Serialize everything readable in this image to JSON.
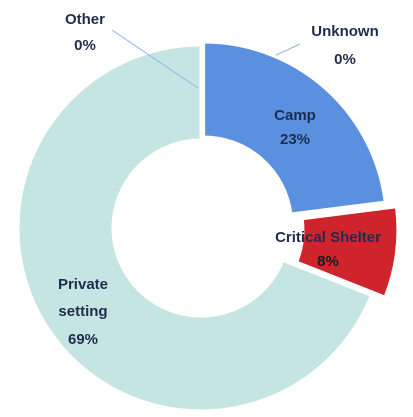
{
  "chart_data": {
    "type": "donut",
    "categories": [
      "Unknown",
      "Camp",
      "Critical Shelter",
      "Private setting",
      "Other"
    ],
    "values": [
      0,
      23,
      8,
      69,
      0
    ],
    "value_labels": [
      "0%",
      "23%",
      "8%",
      "69%",
      "0%"
    ],
    "colors": [
      "#8fb6e6",
      "#5b8fe0",
      "#d0242c",
      "#c5e5e3",
      "#9fd0cc"
    ]
  }
}
